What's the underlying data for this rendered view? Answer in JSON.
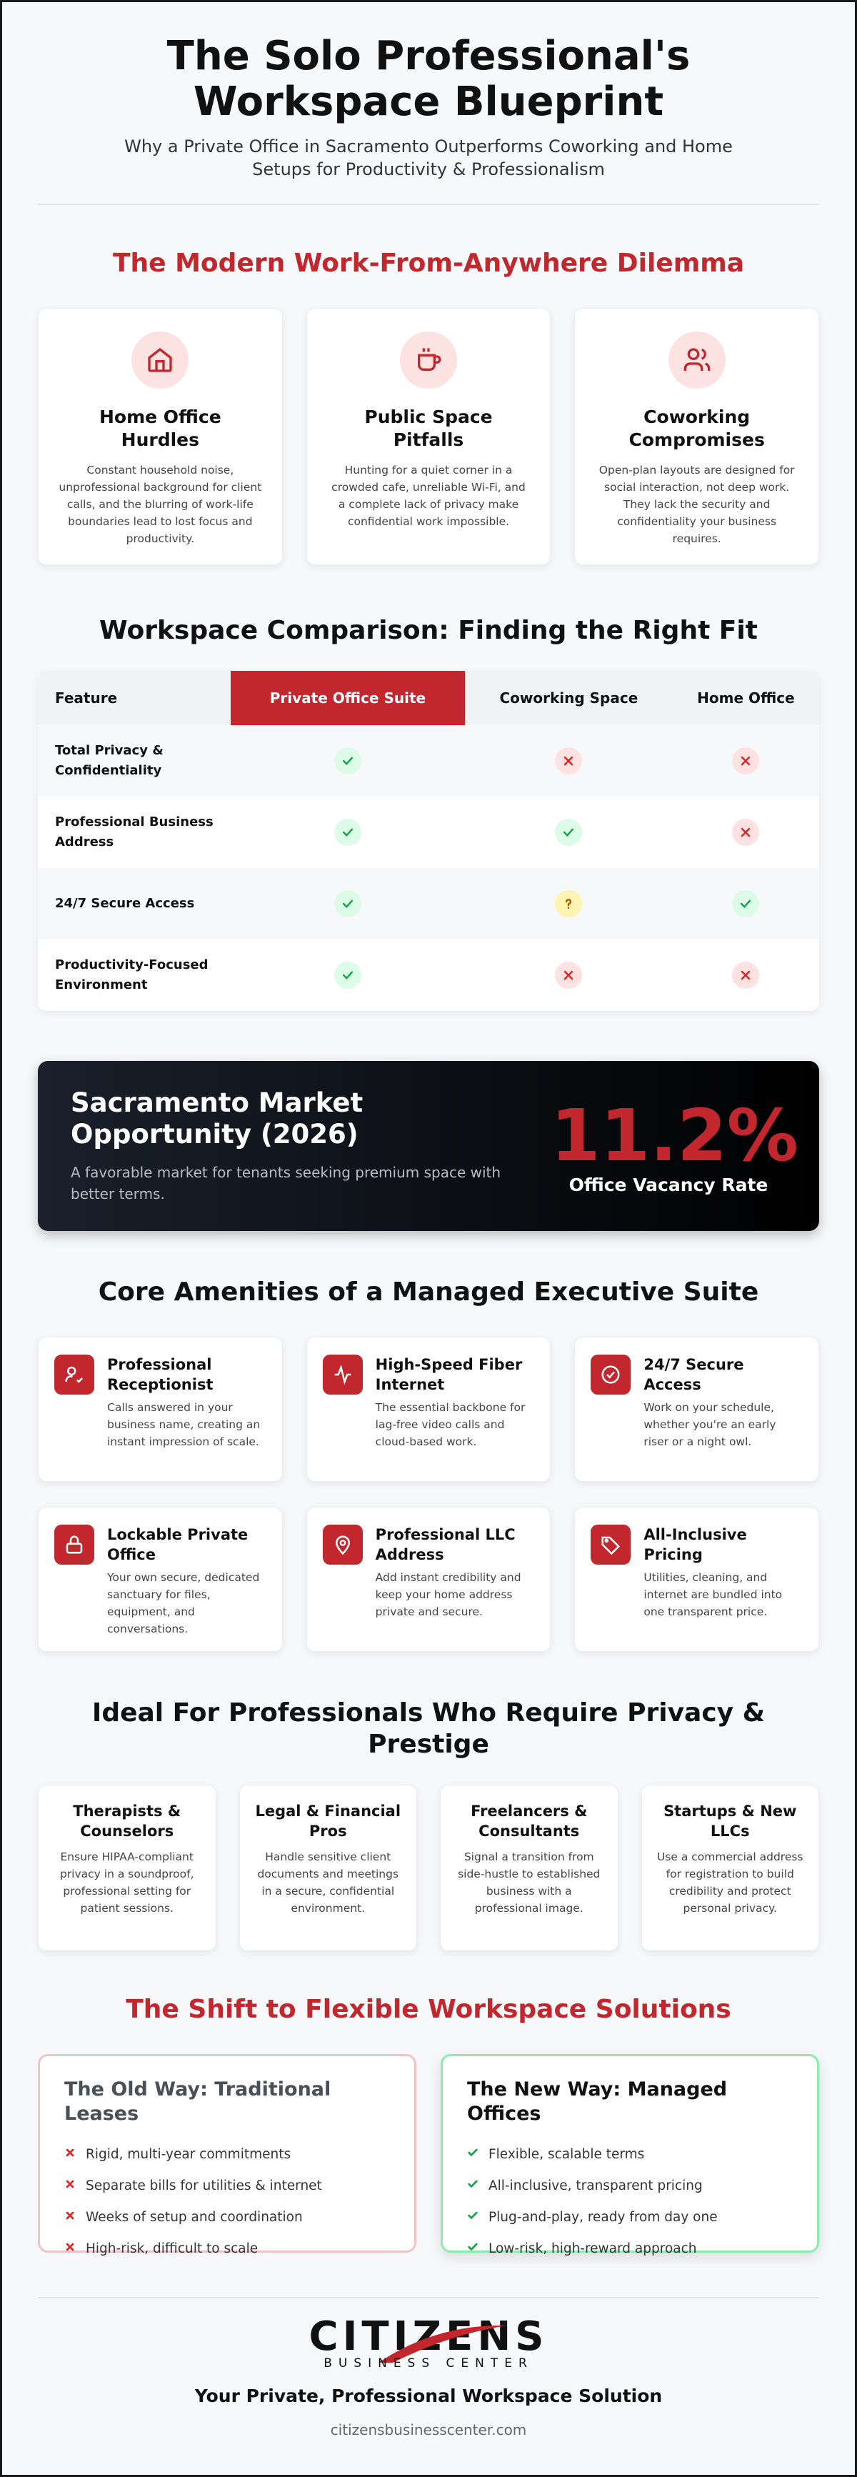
{
  "header": {
    "title": "The Solo Professional's Workspace Blueprint",
    "subtitle": "Why a Private Office in Sacramento Outperforms Coworking and Home Setups for Productivity & Professionalism"
  },
  "dilemma": {
    "heading": "The Modern Work-From-Anywhere Dilemma",
    "cards": [
      {
        "title": "Home Office Hurdles",
        "text": "Constant household noise, unprofessional background for client calls, and the blurring of work-life boundaries lead to lost focus and productivity."
      },
      {
        "title": "Public Space Pitfalls",
        "text": "Hunting for a quiet corner in a crowded cafe, unreliable Wi-Fi, and a complete lack of privacy make confidential work impossible."
      },
      {
        "title": "Coworking Compromises",
        "text": "Open-plan layouts are designed for social interaction, not deep work. They lack the security and confidentiality your business requires."
      }
    ]
  },
  "comparison": {
    "heading": "Workspace Comparison: Finding the Right Fit",
    "columns": [
      "Feature",
      "Private Office Suite",
      "Coworking Space",
      "Home Office"
    ],
    "rows": [
      "Total Privacy & Confidentiality",
      "Professional Business Address",
      "24/7 Secure Access",
      "Productivity-Focused Environment"
    ]
  },
  "market": {
    "title": "Sacramento Market Opportunity (2026)",
    "text": "A favorable market for tenants seeking premium space with better terms.",
    "stat": "11.2%",
    "stat_label": "Office Vacancy Rate"
  },
  "amenities": {
    "heading": "Core Amenities of a Managed Executive Suite",
    "items": [
      {
        "title": "Professional Receptionist",
        "text": "Calls answered in your business name, creating an instant impression of scale."
      },
      {
        "title": "High-Speed Fiber Internet",
        "text": "The essential backbone for lag-free video calls and cloud-based work."
      },
      {
        "title": "24/7 Secure Access",
        "text": "Work on your schedule, whether you're an early riser or a night owl."
      },
      {
        "title": "Lockable Private Office",
        "text": "Your own secure, dedicated sanctuary for files, equipment, and conversations."
      },
      {
        "title": "Professional LLC Address",
        "text": "Add instant credibility and keep your home address private and secure."
      },
      {
        "title": "All-Inclusive Pricing",
        "text": "Utilities, cleaning, and internet are bundled into one transparent price."
      }
    ]
  },
  "ideal": {
    "heading": "Ideal For Professionals Who Require Privacy & Prestige",
    "items": [
      {
        "title": "Therapists & Counselors",
        "text": "Ensure HIPAA-compliant privacy in a soundproof, professional setting for patient sessions."
      },
      {
        "title": "Legal & Financial Pros",
        "text": "Handle sensitive client documents and meetings in a secure, confidential environment."
      },
      {
        "title": "Freelancers & Consultants",
        "text": "Signal a transition from side-hustle to established business with a professional image."
      },
      {
        "title": "Startups & New LLCs",
        "text": "Use a commercial address for registration to build credibility and protect personal privacy."
      }
    ]
  },
  "shift": {
    "heading": "The Shift to Flexible Workspace Solutions",
    "old": {
      "title": "The Old Way: Traditional Leases",
      "items": [
        "Rigid, multi-year commitments",
        "Separate bills for utilities & internet",
        "Weeks of setup and coordination",
        "High-risk, difficult to scale"
      ]
    },
    "new": {
      "title": "The New Way: Managed Offices",
      "items": [
        "Flexible, scalable terms",
        "All-inclusive, transparent pricing",
        "Plug-and-play, ready from day one",
        "Low-risk, high-reward approach"
      ]
    }
  },
  "footer": {
    "logo": "CITIZENS",
    "logo_sub": "BUSINESS CENTER",
    "tagline": "Your Private, Professional Workspace Solution",
    "url": "citizensbusinesscenter.com"
  }
}
